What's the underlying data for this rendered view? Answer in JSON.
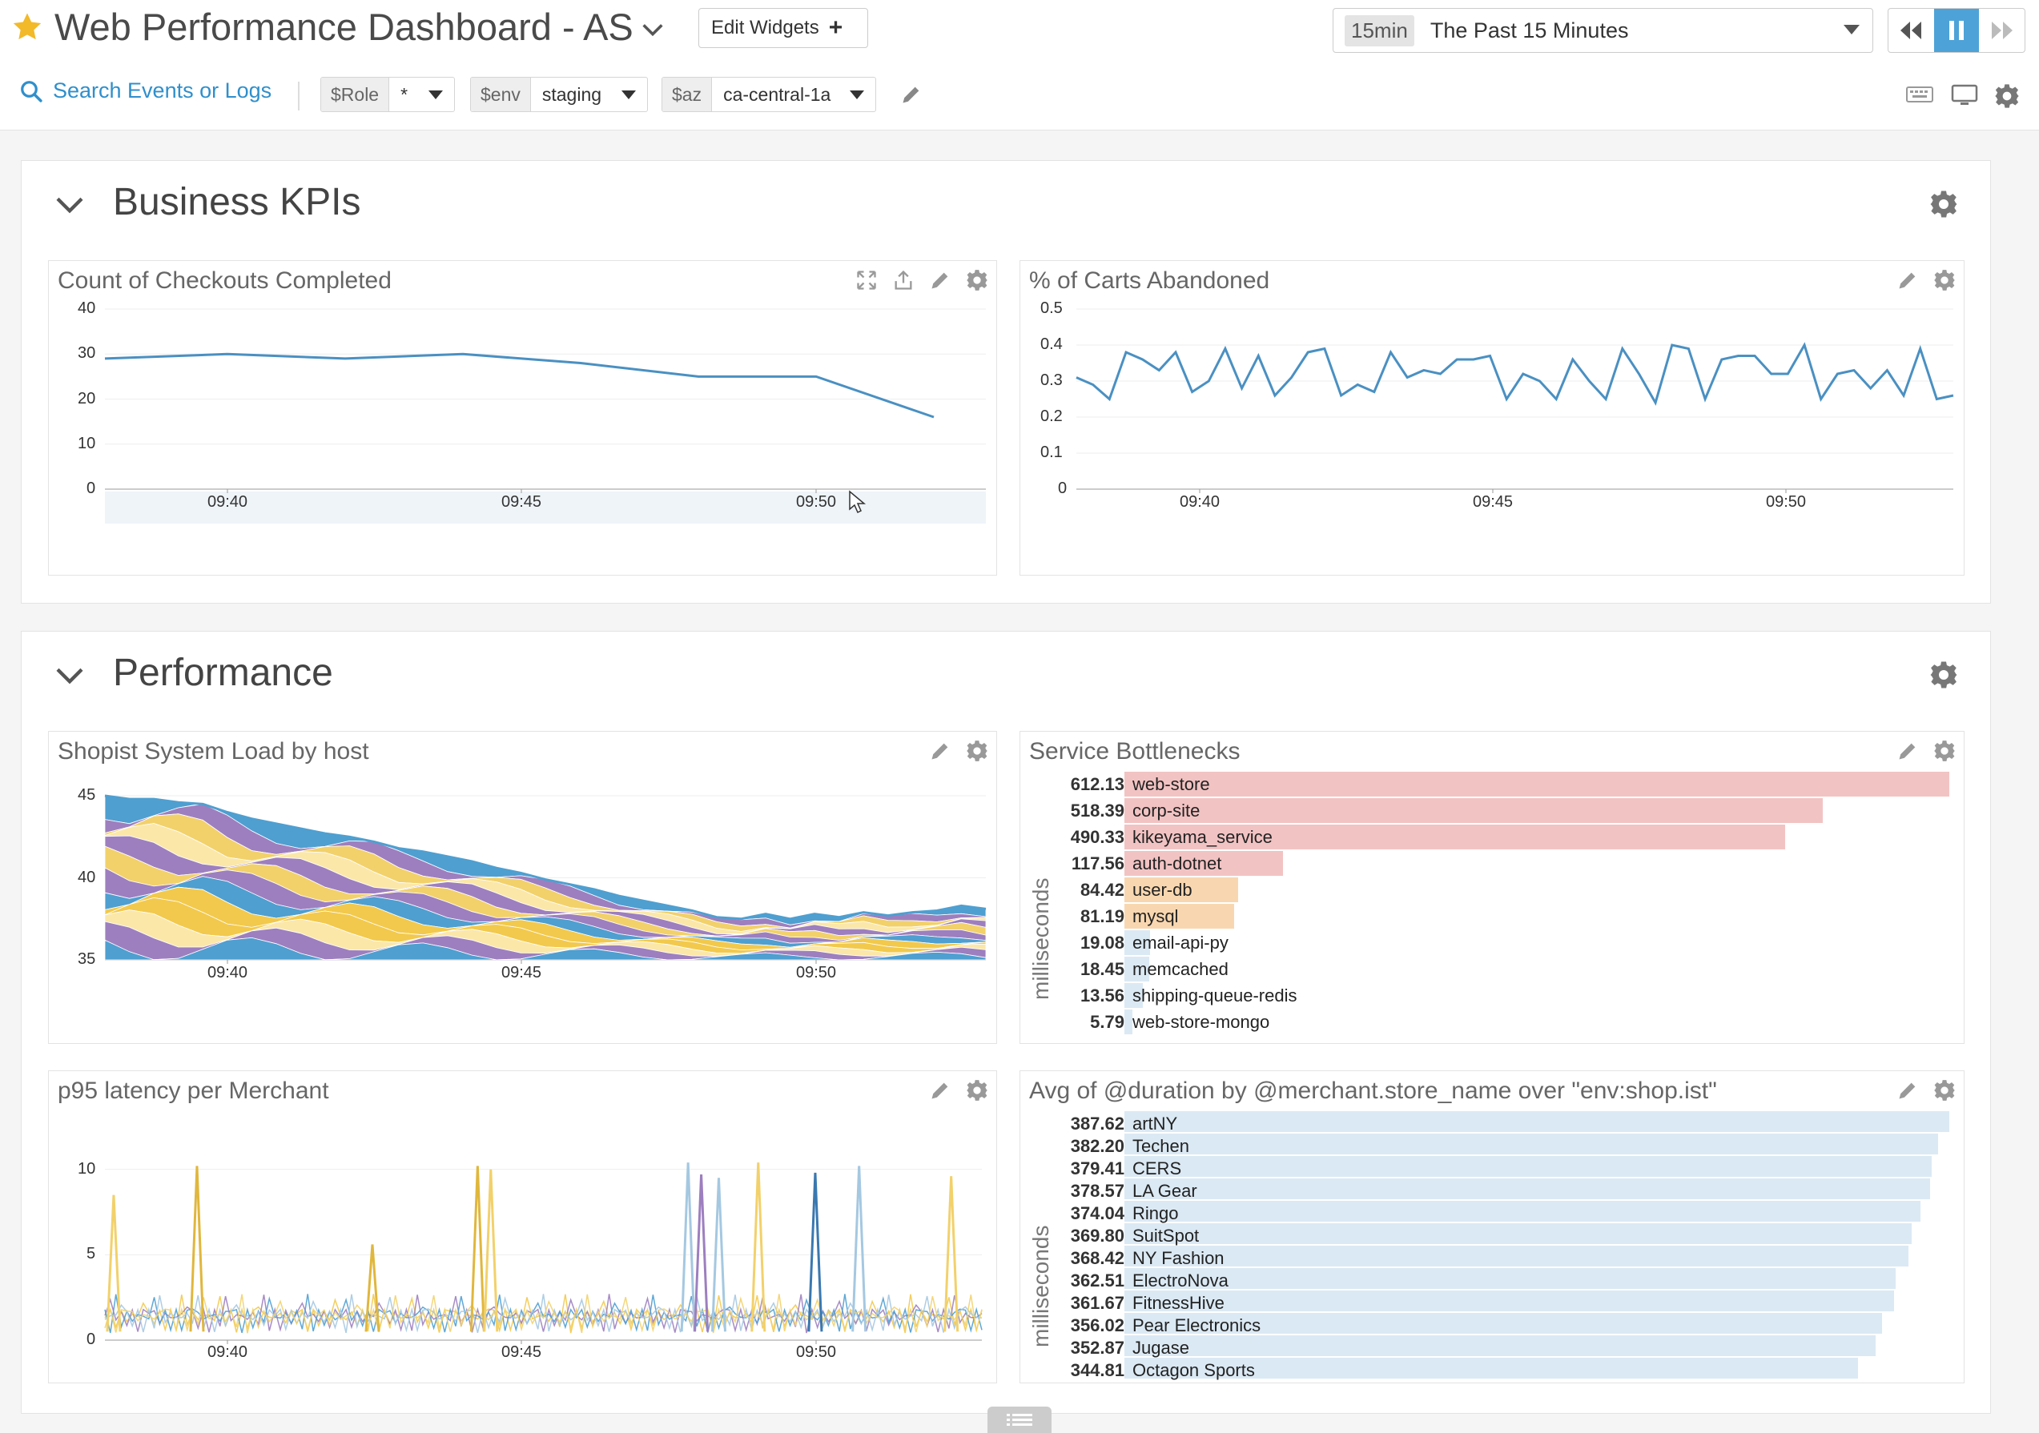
{
  "header": {
    "title": "Web Performance Dashboard - AS",
    "edit_widgets_label": "Edit Widgets",
    "time_badge": "15min",
    "time_label": "The Past 15 Minutes",
    "star_color": "#f2b929"
  },
  "toolbar": {
    "search_label": "Search Events or Logs",
    "template_vars": [
      {
        "key": "$Role",
        "value": "*"
      },
      {
        "key": "$env",
        "value": "staging"
      },
      {
        "key": "$az",
        "value": "ca-central-1a"
      }
    ]
  },
  "groups": [
    {
      "title": "Business KPIs"
    },
    {
      "title": "Performance"
    }
  ],
  "widgets": {
    "checkouts": {
      "title": "Count of Checkouts Completed",
      "chart_data": {
        "type": "line",
        "y_ticks": [
          "40",
          "30",
          "20",
          "10",
          "0"
        ],
        "ylim": [
          0,
          40
        ],
        "x_ticks": [
          "09:40",
          "09:45",
          "09:50"
        ],
        "series": [
          {
            "color": "#4a90c2",
            "x": [
              "09:38",
              "09:40",
              "09:42",
              "09:44",
              "09:46",
              "09:48",
              "09:50",
              "09:52"
            ],
            "values": [
              29,
              30,
              29,
              30,
              28,
              25,
              25,
              16
            ]
          }
        ]
      }
    },
    "carts": {
      "title": "% of Carts Abandoned",
      "chart_data": {
        "type": "line",
        "y_ticks": [
          "0.5",
          "0.4",
          "0.3",
          "0.2",
          "0.1",
          "0"
        ],
        "ylim": [
          0,
          0.5
        ],
        "x_ticks": [
          "09:40",
          "09:45",
          "09:50"
        ],
        "series": [
          {
            "color": "#4a90c2",
            "values": [
              0.31,
              0.29,
              0.25,
              0.38,
              0.36,
              0.33,
              0.38,
              0.27,
              0.3,
              0.39,
              0.28,
              0.37,
              0.26,
              0.31,
              0.38,
              0.39,
              0.26,
              0.29,
              0.27,
              0.38,
              0.31,
              0.33,
              0.32,
              0.36,
              0.36,
              0.37,
              0.25,
              0.32,
              0.3,
              0.25,
              0.36,
              0.3,
              0.25,
              0.39,
              0.32,
              0.24,
              0.4,
              0.39,
              0.25,
              0.36,
              0.37,
              0.37,
              0.32,
              0.32,
              0.4,
              0.25,
              0.32,
              0.33,
              0.28,
              0.33,
              0.26,
              0.39,
              0.25,
              0.26
            ]
          }
        ]
      }
    },
    "sysload": {
      "title": "Shopist System Load by host",
      "chart_data": {
        "type": "area",
        "y_ticks": [
          "45",
          "40",
          "35"
        ],
        "ylim": [
          35,
          45
        ],
        "x_ticks": [
          "09:40",
          "09:45",
          "09:50"
        ],
        "total_values": [
          45,
          44.8,
          44.8,
          44.6,
          44.5,
          44.0,
          43.6,
          43.3,
          43.0,
          42.7,
          42.5,
          42.2,
          41.8,
          41.6,
          41.3,
          41.0,
          40.6,
          40.3,
          39.9,
          39.6,
          39.3,
          38.9,
          38.6,
          38.3,
          38.0,
          37.6,
          37.5,
          37.8,
          37.5,
          37.8,
          37.6,
          37.9,
          37.7,
          37.9,
          38.0,
          38.3,
          38.1
        ],
        "series_colors": [
          "#4f9fd0",
          "#9d7fbf",
          "#f2d16b",
          "#fbe7a8",
          "#9d7fbf",
          "#f2d16b",
          "#9d7fbf",
          "#4f9fd0",
          "#f2c94c",
          "#f2c94c",
          "#fbe7a8",
          "#9d7fbf",
          "#4f9fd0"
        ]
      }
    },
    "bottlenecks": {
      "title": "Service Bottlenecks",
      "axis_label": "milliseconds",
      "chart_data": {
        "type": "bar",
        "max": 612.13,
        "rows": [
          {
            "value": "612.13",
            "name": "web-store",
            "v": 612.13,
            "color": "#f2c3c3"
          },
          {
            "value": "518.39",
            "name": "corp-site",
            "v": 518.39,
            "color": "#f2c3c3"
          },
          {
            "value": "490.33",
            "name": "kikeyama_service",
            "v": 490.33,
            "color": "#f2c3c3"
          },
          {
            "value": "117.56",
            "name": "auth-dotnet",
            "v": 117.56,
            "color": "#f2c3c3"
          },
          {
            "value": "84.42",
            "name": "user-db",
            "v": 84.42,
            "color": "#f8d7b0"
          },
          {
            "value": "81.19",
            "name": "mysql",
            "v": 81.19,
            "color": "#f8d7b0"
          },
          {
            "value": "19.08",
            "name": "email-api-py",
            "v": 19.08,
            "color": "#dbe9f4"
          },
          {
            "value": "18.45",
            "name": "memcached",
            "v": 18.45,
            "color": "#dbe9f4"
          },
          {
            "value": "13.56",
            "name": "shipping-queue-redis",
            "v": 13.56,
            "color": "#dbe9f4"
          },
          {
            "value": "5.79",
            "name": "web-store-mongo",
            "v": 5.79,
            "color": "#dbe9f4"
          }
        ]
      }
    },
    "p95": {
      "title": "p95 latency per Merchant",
      "chart_data": {
        "type": "line",
        "y_ticks": [
          "10",
          "5",
          "0"
        ],
        "ylim": [
          0,
          12
        ],
        "x_ticks": [
          "09:40",
          "09:45",
          "09:50"
        ],
        "spikes": [
          {
            "p": 0.01,
            "v": 8.5,
            "color": "#f2d16b"
          },
          {
            "p": 0.105,
            "v": 10.2,
            "color": "#e0b73d"
          },
          {
            "p": 0.305,
            "v": 5.6,
            "color": "#e0b73d"
          },
          {
            "p": 0.425,
            "v": 10.2,
            "color": "#e0b73d"
          },
          {
            "p": 0.44,
            "v": 10.0,
            "color": "#f2d16b"
          },
          {
            "p": 0.665,
            "v": 10.4,
            "color": "#a5c8e1"
          },
          {
            "p": 0.68,
            "v": 9.7,
            "color": "#9d7fbf"
          },
          {
            "p": 0.7,
            "v": 9.5,
            "color": "#a5c8e1"
          },
          {
            "p": 0.745,
            "v": 10.4,
            "color": "#f2d16b"
          },
          {
            "p": 0.81,
            "v": 9.8,
            "color": "#3a78b0"
          },
          {
            "p": 0.86,
            "v": 10.2,
            "color": "#a5c8e1"
          },
          {
            "p": 0.965,
            "v": 9.6,
            "color": "#f2d16b"
          }
        ],
        "noise_colors": [
          "#f2c94c",
          "#9d7fbf",
          "#4f9fd0",
          "#a5c8e1",
          "#f2d16b"
        ]
      }
    },
    "avgduration": {
      "title": "Avg of @duration by @merchant.store_name over \"env:shop.ist\"",
      "axis_label": "milliseconds",
      "chart_data": {
        "type": "bar",
        "max": 387.62,
        "rows": [
          {
            "value": "387.62",
            "name": "artNY",
            "v": 387.62
          },
          {
            "value": "382.20",
            "name": "Techen",
            "v": 382.2
          },
          {
            "value": "379.41",
            "name": "CERS",
            "v": 379.41
          },
          {
            "value": "378.57",
            "name": "LA Gear",
            "v": 378.57
          },
          {
            "value": "374.04",
            "name": "Ringo",
            "v": 374.04
          },
          {
            "value": "369.80",
            "name": "SuitSpot",
            "v": 369.8
          },
          {
            "value": "368.42",
            "name": "NY Fashion",
            "v": 368.42
          },
          {
            "value": "362.51",
            "name": "ElectroNova",
            "v": 362.51
          },
          {
            "value": "361.67",
            "name": "FitnessHive",
            "v": 361.67
          },
          {
            "value": "356.02",
            "name": "Pear Electronics",
            "v": 356.02
          },
          {
            "value": "352.87",
            "name": "Jugase",
            "v": 352.87
          },
          {
            "value": "344.81",
            "name": "Octagon Sports",
            "v": 344.81
          }
        ],
        "color": "#dbe9f4"
      }
    }
  }
}
